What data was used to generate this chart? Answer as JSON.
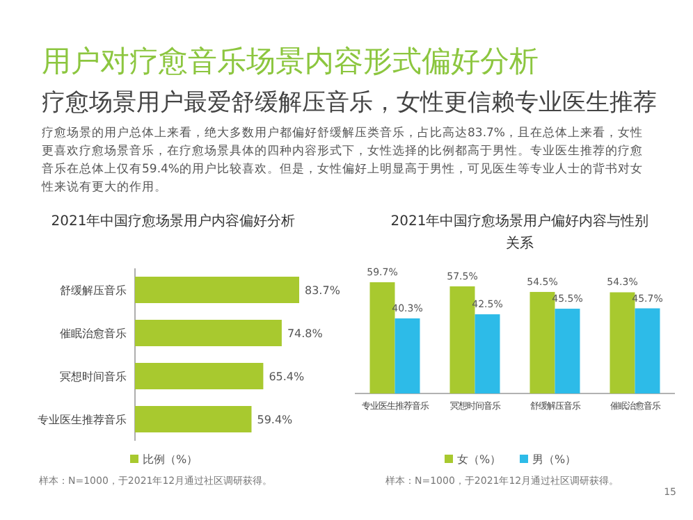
{
  "chart_data": [
    {
      "type": "other",
      "title": "用户对疗愈音乐场景内容形式偏好分析",
      "subtitle": "疗愈场景用户最爱舒缓解压音乐，女性更信赖专业医生推荐",
      "annotations": [
        "疗愈场景的用户总体上来看，绝大多数用户都偏好舒缓解压类音乐，占比高达83.7%，且在总体上来看，女性更喜欢疗愈场景音乐，在疗愈场景具体的四种内容形式下，女性选择的比例都高于男性。专业医生推荐的疗愈音乐在总体上仅有59.4%的用户比较喜欢。但是，女性偏好上明显高于男性，可见医生等专业人士的背书对女性来说有更大的作用。"
      ]
    },
    {
      "type": "bar",
      "orientation": "horizontal",
      "title": "2021年中国疗愈场景用户内容偏好分析",
      "categories": [
        "舒缓解压音乐",
        "催眠治愈音乐",
        "冥想时间音乐",
        "专业医生推荐音乐"
      ],
      "series": [
        {
          "name": "比例（%）",
          "color": "#a8c92f",
          "values": [
            83.7,
            74.8,
            65.4,
            59.4
          ],
          "value_labels": [
            "83.7%",
            "74.8%",
            "65.4%",
            "59.4%"
          ]
        }
      ],
      "legend": "bottom",
      "annotations": [
        "样本：N=1000，于2021年12月通过社区调研获得。"
      ]
    },
    {
      "type": "bar",
      "title": "2021年中国疗愈场景用户偏好内容与性别关系",
      "categories": [
        "专业医生推荐音乐",
        "冥想时间音乐",
        "舒缓解压音乐",
        "催眠治愈音乐"
      ],
      "series": [
        {
          "name": "女（%）",
          "color": "#a8c92f",
          "values": [
            59.7,
            57.5,
            54.5,
            54.3
          ],
          "value_labels": [
            "59.7%",
            "57.5%",
            "54.5%",
            "54.3%"
          ]
        },
        {
          "name": "男（%）",
          "color": "#2dbbe8",
          "values": [
            40.3,
            42.5,
            45.5,
            45.7
          ],
          "value_labels": [
            "40.3%",
            "42.5%",
            "45.5%",
            "45.7%"
          ]
        }
      ],
      "legend": "bottom",
      "annotations": [
        "样本：N=1000，于2021年12月通过社区调研获得。",
        "15"
      ]
    }
  ]
}
